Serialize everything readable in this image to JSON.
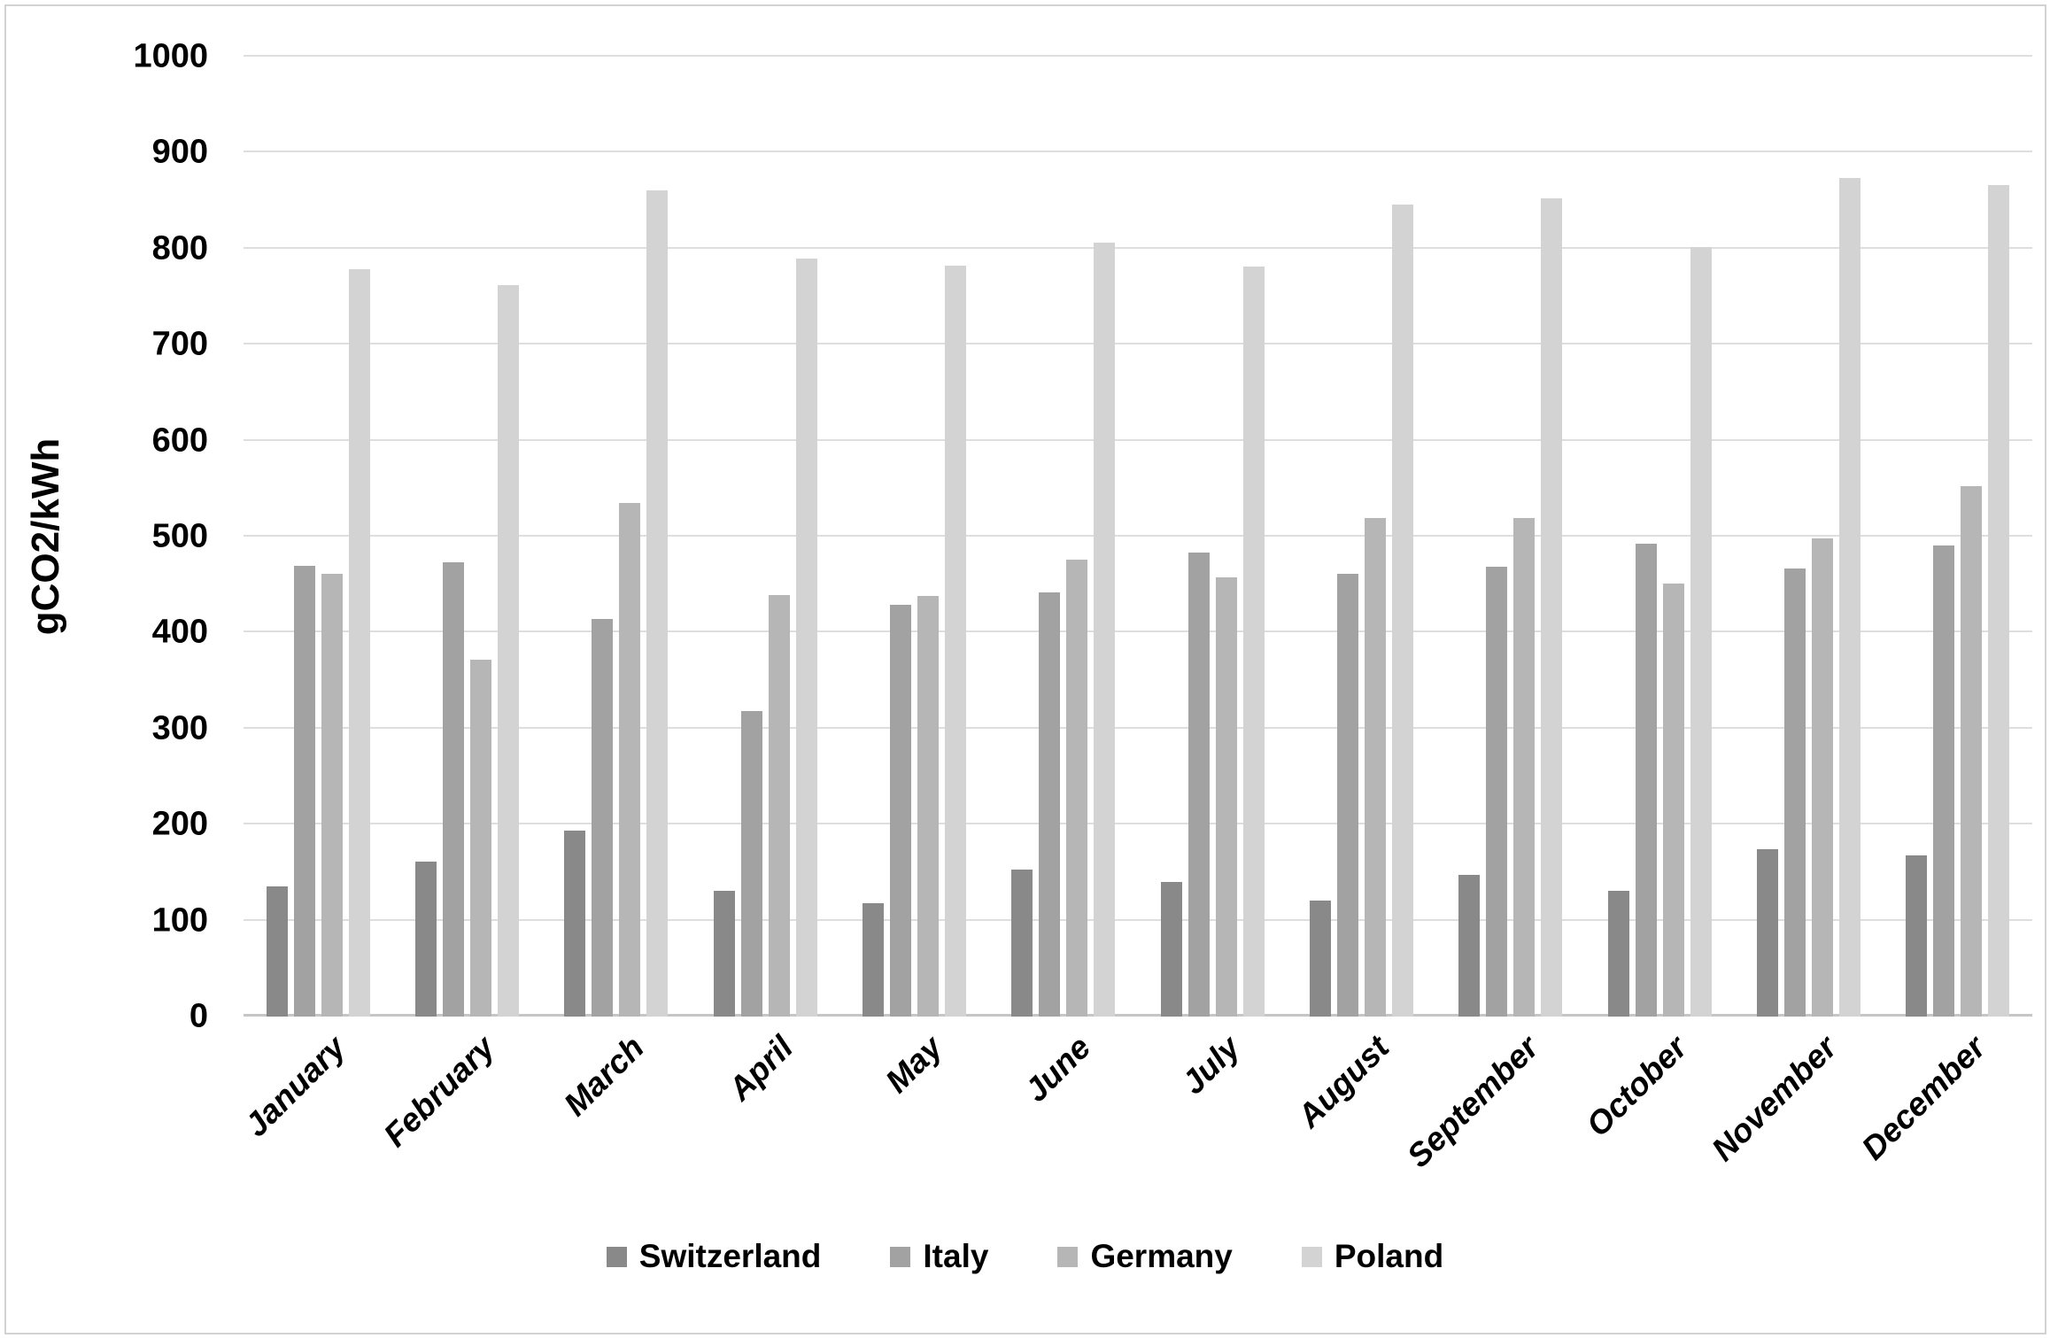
{
  "chart_data": {
    "type": "bar",
    "title": "",
    "xlabel": "",
    "ylabel": "gCO2/kWh",
    "ylim": [
      0,
      1000
    ],
    "ytick_step": 100,
    "yticks": [
      0,
      100,
      200,
      300,
      400,
      500,
      600,
      700,
      800,
      900,
      1000
    ],
    "grid": true,
    "legend_position": "bottom",
    "categories": [
      "January",
      "February",
      "March",
      "April",
      "May",
      "June",
      "July",
      "August",
      "September",
      "October",
      "November",
      "December"
    ],
    "series": [
      {
        "name": "Switzerland",
        "color": "#898989",
        "values": [
          136,
          161,
          194,
          131,
          118,
          153,
          140,
          121,
          148,
          131,
          174,
          168
        ]
      },
      {
        "name": "Italy",
        "color": "#a2a2a2",
        "values": [
          470,
          473,
          414,
          318,
          429,
          442,
          483,
          461,
          469,
          493,
          467,
          491
        ]
      },
      {
        "name": "Germany",
        "color": "#b6b6b6",
        "values": [
          461,
          372,
          535,
          439,
          438,
          476,
          458,
          519,
          519,
          451,
          498,
          553
        ]
      },
      {
        "name": "Poland",
        "color": "#d3d3d3",
        "values": [
          779,
          762,
          861,
          790,
          782,
          806,
          781,
          846,
          852,
          802,
          874,
          866
        ]
      }
    ],
    "colors": {
      "gridline": "#dedede",
      "axis_line": "#c6c6c6",
      "text": "#000000",
      "background": "#ffffff",
      "frame_border": "#d2d2d2"
    }
  }
}
